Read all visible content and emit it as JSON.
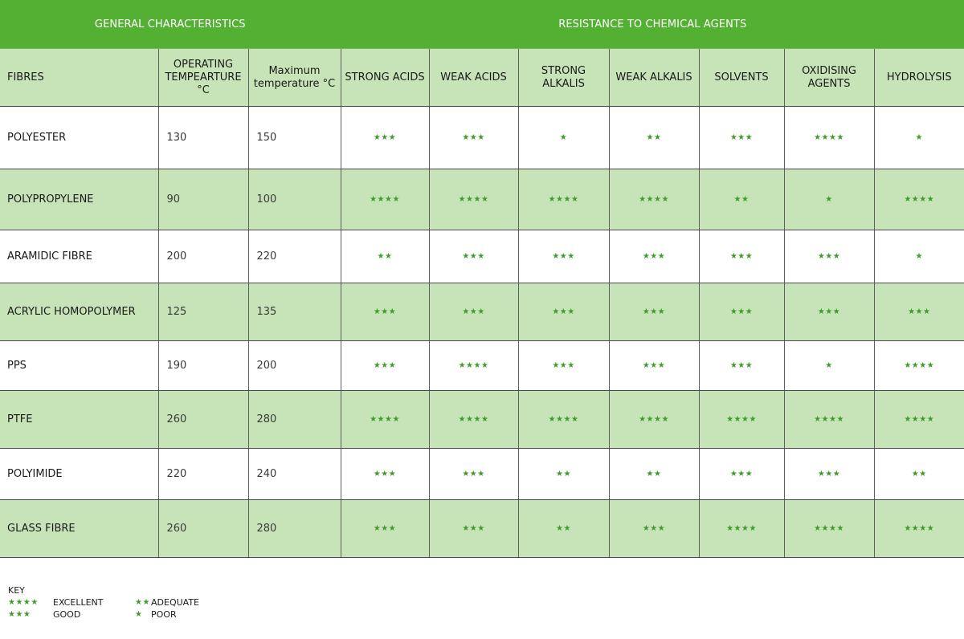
{
  "header": {
    "general": "GENERAL CHARACTERISTICS",
    "resistance": "RESISTANCE TO CHEMICAL AGENTS"
  },
  "columns": [
    "FIBRES",
    "OPERATING TEMPEARTURE °C",
    "Maximum temperature °C",
    "STRONG ACIDS",
    "WEAK ACIDS",
    "STRONG ALKALIS",
    "WEAK ALKALIS",
    "SOLVENTS",
    "OXIDISING AGENTS",
    "HYDROLYSIS"
  ],
  "rows": [
    {
      "fibre": "POLYESTER",
      "operating": "130",
      "maximum": "150",
      "ratings": [
        3,
        3,
        1,
        2,
        3,
        4,
        1
      ]
    },
    {
      "fibre": "POLYPROPYLENE",
      "operating": "90",
      "maximum": "100",
      "ratings": [
        4,
        4,
        4,
        4,
        2,
        1,
        4
      ]
    },
    {
      "fibre": "ARAMIDIC FIBRE",
      "operating": "200",
      "maximum": "220",
      "ratings": [
        2,
        3,
        3,
        3,
        3,
        3,
        1
      ]
    },
    {
      "fibre": "ACRYLIC HOMOPOLYMER",
      "operating": "125",
      "maximum": "135",
      "ratings": [
        3,
        3,
        3,
        3,
        3,
        3,
        3
      ]
    },
    {
      "fibre": "PPS",
      "operating": "190",
      "maximum": "200",
      "ratings": [
        3,
        4,
        3,
        3,
        3,
        1,
        4
      ]
    },
    {
      "fibre": "PTFE",
      "operating": "260",
      "maximum": "280",
      "ratings": [
        4,
        4,
        4,
        4,
        4,
        4,
        4
      ]
    },
    {
      "fibre": "POLYIMIDE",
      "operating": "220",
      "maximum": "240",
      "ratings": [
        3,
        3,
        2,
        2,
        3,
        3,
        2
      ]
    },
    {
      "fibre": "GLASS FIBRE",
      "operating": "260",
      "maximum": "280",
      "ratings": [
        3,
        3,
        2,
        3,
        4,
        4,
        4
      ]
    }
  ],
  "key": {
    "title": "KEY",
    "items": [
      {
        "stars": 4,
        "label": "EXCELLENT"
      },
      {
        "stars": 2,
        "label": "ADEQUATE"
      },
      {
        "stars": 3,
        "label": "GOOD"
      },
      {
        "stars": 1,
        "label": "POOR"
      }
    ]
  },
  "colors": {
    "header_green": "#54b032",
    "row_green": "#c7e3b8",
    "star_green": "#3f9c2a"
  },
  "icons": {
    "rating": "star-icon"
  }
}
